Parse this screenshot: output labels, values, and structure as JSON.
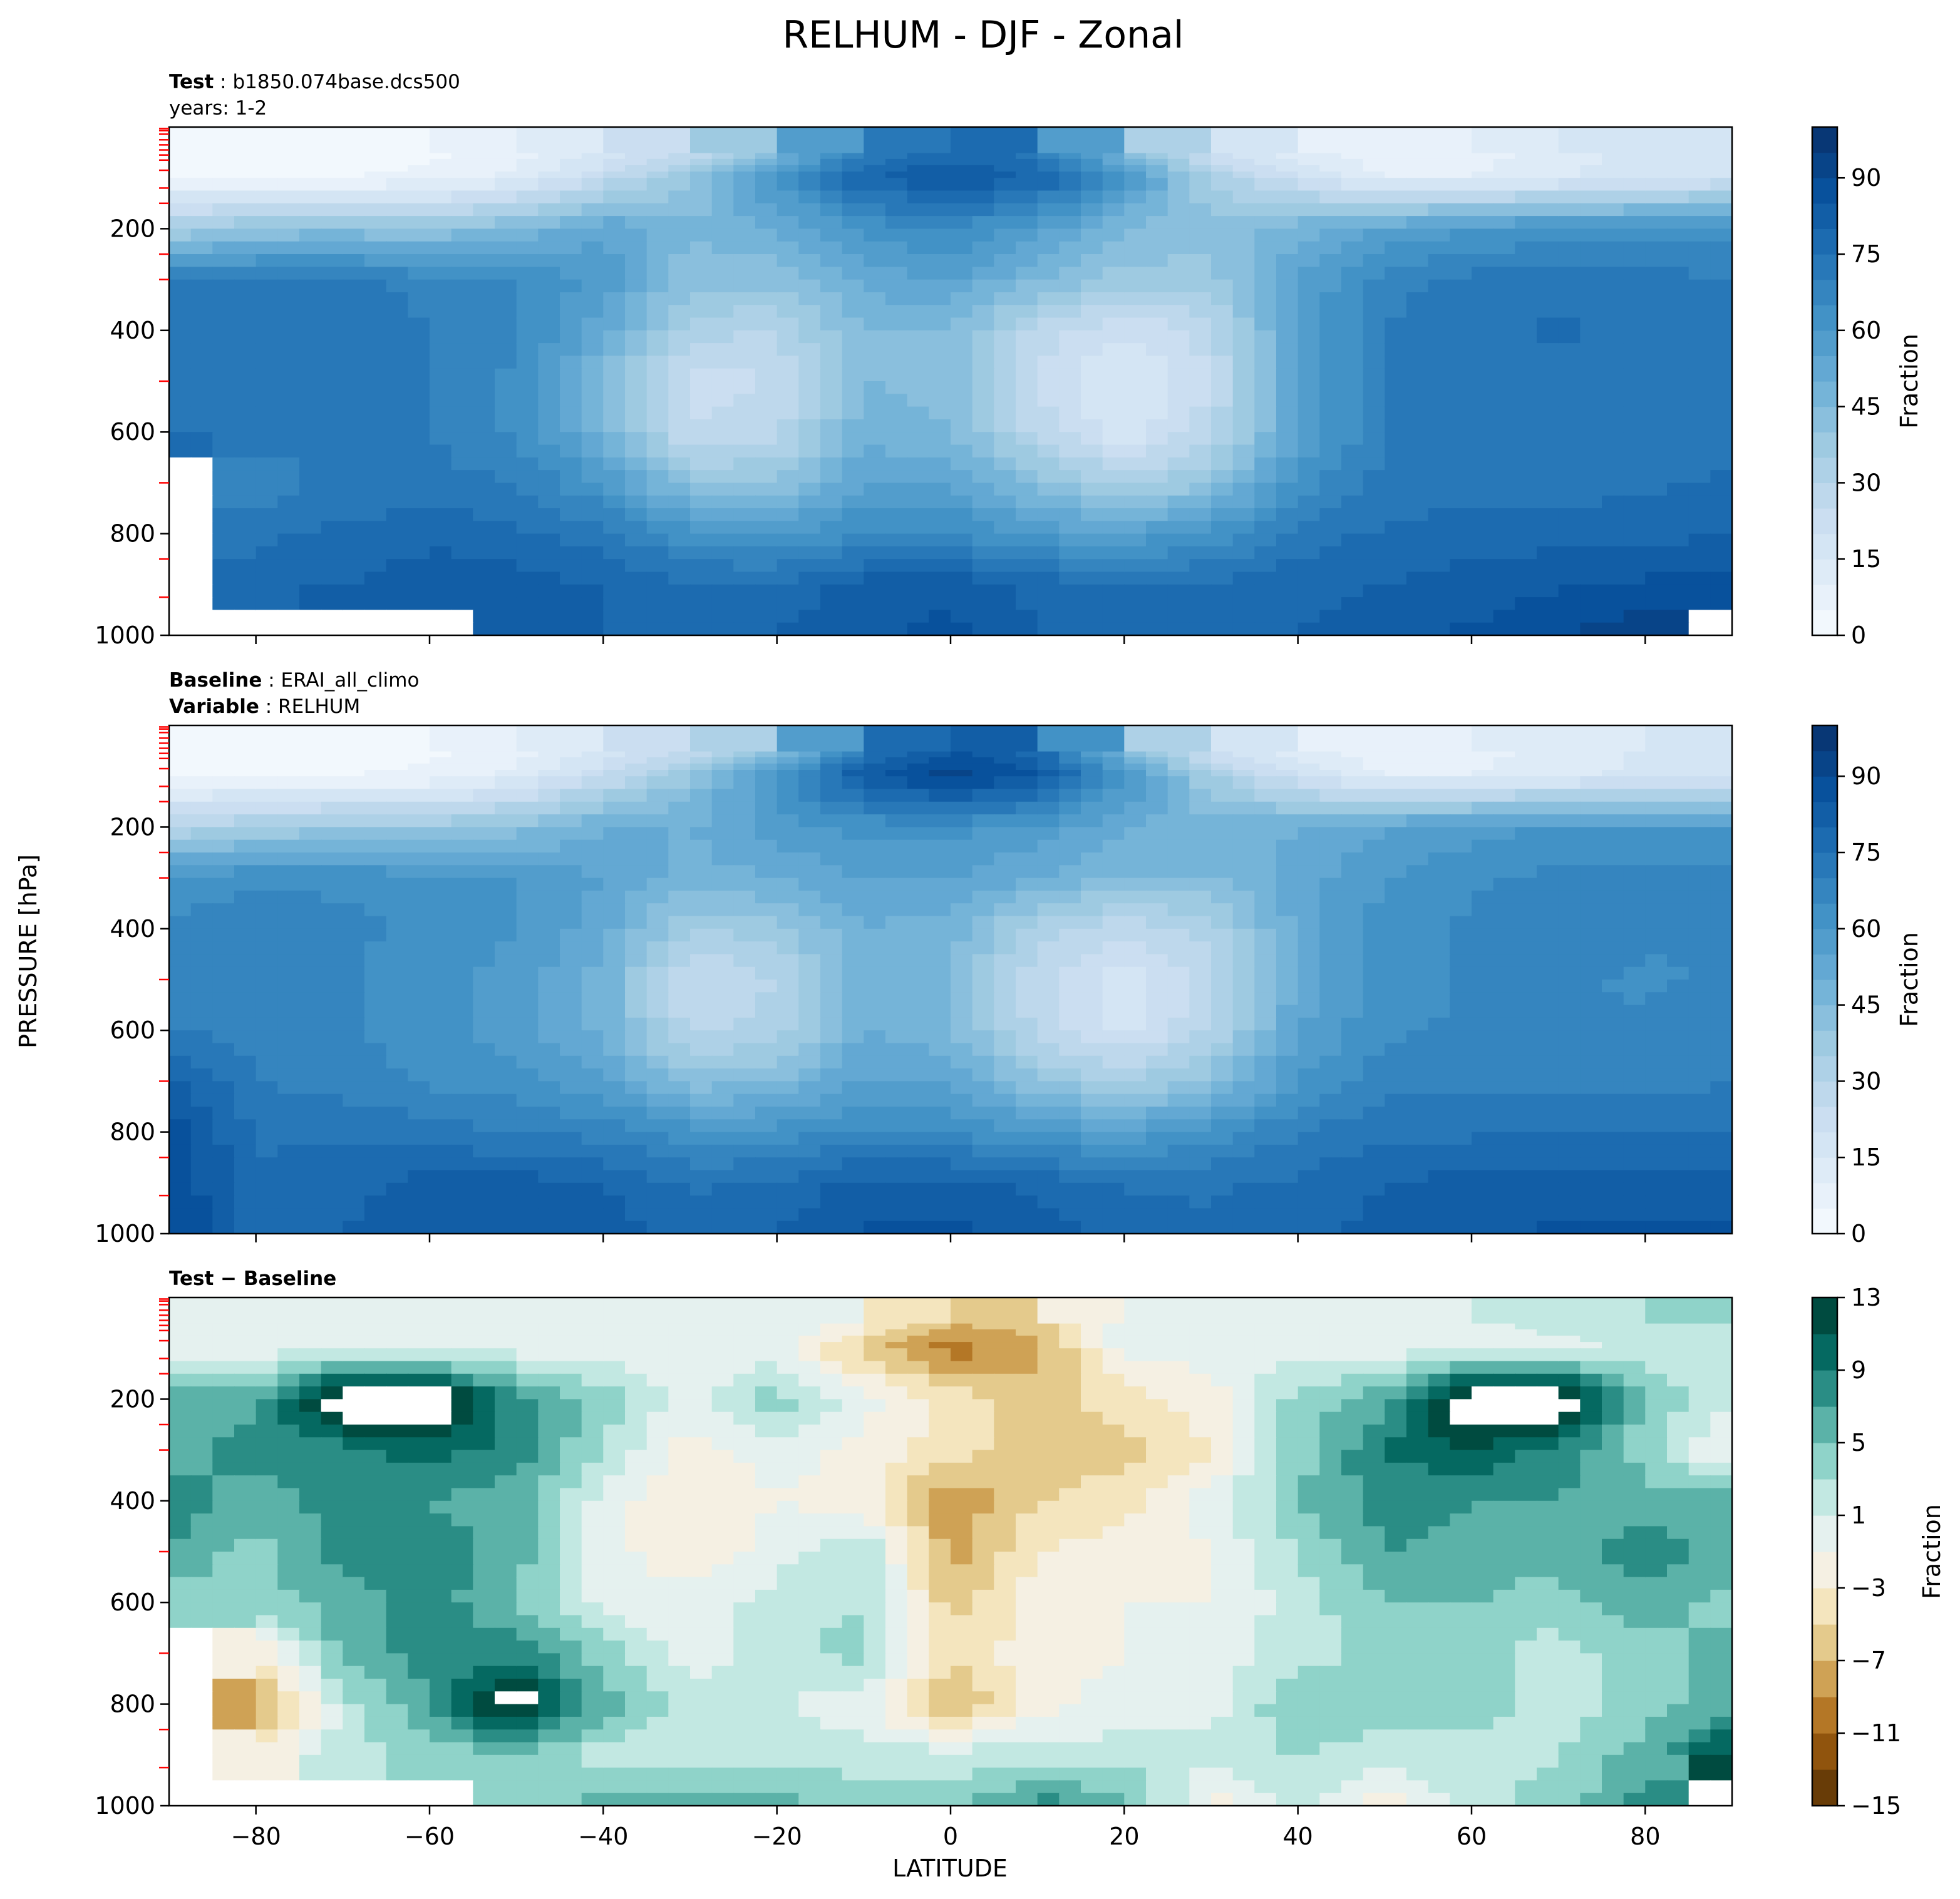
{
  "figure": {
    "title": "RELHUM - DJF - Zonal",
    "ylabel": "PRESSURE [hPa]",
    "xlabel": "LATITUDE"
  },
  "panels": [
    {
      "id": "test",
      "title_lines": [
        {
          "bold": "Test",
          "sep": " : ",
          "text": "b1850.074base.dcs500"
        },
        {
          "bold": "",
          "sep": "",
          "text": "years: 1-2"
        }
      ],
      "colorbar": {
        "label": "Fraction",
        "ticks": [
          "0",
          "15",
          "30",
          "45",
          "60",
          "75",
          "90"
        ]
      }
    },
    {
      "id": "baseline",
      "title_lines": [
        {
          "bold": "Baseline",
          "sep": " : ",
          "text": "ERAI_all_climo"
        },
        {
          "bold": "Variable",
          "sep": " : ",
          "text": "RELHUM"
        }
      ],
      "colorbar": {
        "label": "Fraction",
        "ticks": [
          "0",
          "15",
          "30",
          "45",
          "60",
          "75",
          "90"
        ]
      }
    },
    {
      "id": "diff",
      "title_lines": [
        {
          "bold": "Test − Baseline",
          "sep": "",
          "text": ""
        }
      ],
      "colorbar": {
        "label": "Fraction",
        "ticks": [
          "13",
          "9",
          "5",
          "1",
          "−3",
          "−7",
          "−11",
          "−15"
        ]
      }
    }
  ],
  "chart_data": [
    {
      "type": "heatmap",
      "panel": "test",
      "x": [
        -90,
        -80,
        -70,
        -60,
        -50,
        -40,
        -30,
        -20,
        -10,
        0,
        10,
        20,
        30,
        40,
        50,
        60,
        70,
        80,
        90
      ],
      "y": [
        50,
        100,
        200,
        300,
        400,
        500,
        600,
        700,
        800,
        900,
        1000
      ],
      "z": [
        [
          2,
          3,
          3,
          4,
          8,
          15,
          25,
          45,
          70,
          78,
          72,
          45,
          20,
          12,
          6,
          8,
          12,
          18,
          20
        ],
        [
          4,
          5,
          5,
          6,
          12,
          25,
          40,
          62,
          80,
          85,
          80,
          62,
          35,
          20,
          10,
          10,
          14,
          18,
          20
        ],
        [
          35,
          40,
          42,
          40,
          45,
          55,
          45,
          50,
          62,
          65,
          58,
          45,
          42,
          48,
          55,
          60,
          62,
          62,
          62
        ],
        [
          70,
          72,
          72,
          68,
          66,
          58,
          42,
          42,
          52,
          55,
          45,
          38,
          38,
          55,
          68,
          72,
          72,
          72,
          70
        ],
        [
          75,
          74,
          74,
          70,
          66,
          52,
          32,
          30,
          45,
          45,
          28,
          20,
          28,
          55,
          70,
          74,
          76,
          72,
          72
        ],
        [
          72,
          72,
          74,
          70,
          64,
          45,
          22,
          25,
          45,
          42,
          25,
          14,
          25,
          55,
          70,
          72,
          72,
          72,
          72
        ],
        [
          75,
          72,
          72,
          70,
          64,
          48,
          25,
          28,
          48,
          45,
          28,
          16,
          28,
          55,
          70,
          72,
          70,
          72,
          72
        ],
        [
          null,
          66,
          72,
          72,
          70,
          60,
          40,
          40,
          55,
          55,
          42,
          32,
          40,
          62,
          72,
          72,
          72,
          74,
          76
        ],
        [
          null,
          74,
          76,
          78,
          76,
          72,
          62,
          58,
          65,
          65,
          58,
          56,
          62,
          72,
          76,
          78,
          78,
          78,
          80
        ],
        [
          null,
          76,
          80,
          84,
          82,
          80,
          76,
          76,
          82,
          84,
          78,
          76,
          76,
          78,
          80,
          82,
          84,
          86,
          88
        ],
        [
          null,
          null,
          null,
          null,
          80,
          80,
          78,
          80,
          84,
          86,
          80,
          78,
          78,
          80,
          82,
          86,
          90,
          94,
          null
        ]
      ],
      "zlim": [
        0,
        100
      ],
      "colorbar_label": "Fraction"
    },
    {
      "type": "heatmap",
      "panel": "baseline",
      "x": [
        -90,
        -80,
        -70,
        -60,
        -50,
        -40,
        -30,
        -20,
        -10,
        0,
        10,
        20,
        30,
        40,
        50,
        60,
        70,
        80,
        90
      ],
      "y": [
        50,
        100,
        200,
        300,
        400,
        500,
        600,
        700,
        800,
        900,
        1000
      ],
      "z": [
        [
          2,
          3,
          3,
          4,
          8,
          15,
          25,
          40,
          72,
          85,
          78,
          45,
          20,
          12,
          6,
          8,
          12,
          16,
          18
        ],
        [
          4,
          5,
          5,
          6,
          12,
          25,
          40,
          62,
          85,
          92,
          86,
          62,
          35,
          20,
          10,
          10,
          14,
          16,
          18
        ],
        [
          30,
          35,
          38,
          38,
          42,
          50,
          50,
          58,
          62,
          62,
          58,
          50,
          48,
          50,
          55,
          58,
          60,
          60,
          60
        ],
        [
          62,
          64,
          64,
          62,
          60,
          55,
          48,
          50,
          55,
          55,
          50,
          45,
          45,
          52,
          60,
          64,
          66,
          66,
          66
        ],
        [
          66,
          68,
          66,
          64,
          60,
          52,
          35,
          38,
          50,
          48,
          32,
          26,
          32,
          52,
          62,
          66,
          68,
          66,
          66
        ],
        [
          66,
          68,
          66,
          62,
          58,
          48,
          24,
          30,
          48,
          45,
          26,
          16,
          28,
          52,
          62,
          66,
          66,
          64,
          66
        ],
        [
          70,
          68,
          66,
          62,
          58,
          48,
          28,
          32,
          50,
          46,
          28,
          18,
          30,
          54,
          64,
          66,
          66,
          66,
          68
        ],
        [
          82,
          70,
          68,
          64,
          62,
          56,
          42,
          44,
          56,
          54,
          40,
          34,
          42,
          60,
          68,
          68,
          68,
          68,
          70
        ],
        [
          88,
          74,
          74,
          72,
          70,
          68,
          62,
          62,
          66,
          64,
          60,
          56,
          62,
          70,
          74,
          74,
          74,
          74,
          74
        ],
        [
          90,
          76,
          78,
          82,
          82,
          80,
          74,
          76,
          82,
          82,
          78,
          74,
          74,
          76,
          80,
          82,
          82,
          82,
          82
        ],
        [
          90,
          78,
          80,
          84,
          84,
          82,
          78,
          80,
          86,
          86,
          82,
          78,
          76,
          78,
          82,
          84,
          86,
          86,
          86
        ]
      ],
      "zlim": [
        0,
        100
      ],
      "colorbar_label": "Fraction"
    },
    {
      "type": "heatmap",
      "panel": "diff",
      "x": [
        -90,
        -80,
        -70,
        -60,
        -50,
        -40,
        -30,
        -20,
        -10,
        0,
        10,
        20,
        30,
        40,
        50,
        60,
        70,
        80,
        90
      ],
      "y": [
        50,
        100,
        200,
        300,
        400,
        500,
        600,
        700,
        800,
        900,
        1000
      ],
      "z": [
        [
          0,
          0,
          0,
          0,
          0,
          0,
          0,
          1,
          -2,
          -7,
          -6,
          0,
          0,
          0,
          0,
          0,
          2,
          3,
          3
        ],
        [
          0,
          0,
          0,
          0,
          0,
          0,
          0,
          0,
          -6,
          -10,
          -8,
          0,
          0,
          0,
          0,
          0,
          0,
          2,
          2
        ],
        [
          6,
          6,
          16,
          16,
          8,
          4,
          0,
          4,
          0,
          -4,
          -6,
          -4,
          -2,
          4,
          6,
          16,
          16,
          4,
          2
        ],
        [
          6,
          8,
          8,
          10,
          8,
          3,
          -2,
          0,
          -2,
          -4,
          -6,
          -6,
          -3,
          4,
          9,
          11,
          8,
          4,
          -2
        ],
        [
          8,
          6,
          8,
          7,
          6,
          0,
          -3,
          -1,
          -2,
          -9,
          -5,
          -4,
          0,
          5,
          8,
          7,
          7,
          6,
          6
        ],
        [
          7,
          4,
          8,
          8,
          6,
          0,
          -3,
          0,
          3,
          -8,
          -3,
          -2,
          -1,
          3,
          7,
          6,
          6,
          8,
          6
        ],
        [
          4,
          4,
          6,
          8,
          5,
          0,
          0,
          2,
          3,
          -6,
          -2,
          -1,
          -1,
          2,
          5,
          5,
          4,
          6,
          4
        ],
        [
          null,
          -3,
          6,
          8,
          8,
          4,
          0,
          2,
          4,
          -4,
          -2,
          -1,
          0,
          2,
          4,
          4,
          2,
          4,
          6
        ],
        [
          null,
          -9,
          2,
          7,
          15,
          6,
          2,
          1,
          0,
          -8,
          -2,
          0,
          0,
          5,
          4,
          4,
          2,
          4,
          6
        ],
        [
          null,
          -2,
          2,
          4,
          4,
          2,
          2,
          2,
          2,
          2,
          2,
          2,
          2,
          3,
          2,
          2,
          3,
          6,
          12
        ],
        [
          null,
          null,
          null,
          null,
          4,
          6,
          6,
          6,
          4,
          4,
          8,
          6,
          -2,
          2,
          -2,
          2,
          4,
          8,
          null
        ]
      ],
      "zlim": [
        -15,
        13
      ],
      "levels": [
        -15,
        -13,
        -11,
        -9,
        -7,
        -5,
        -3,
        -1,
        1,
        3,
        5,
        7,
        9,
        11,
        13
      ],
      "colorbar_label": "Fraction"
    }
  ],
  "axes": {
    "x_ticks": [
      "−80",
      "−60",
      "−40",
      "−20",
      "0",
      "20",
      "40",
      "60",
      "80"
    ],
    "x_tick_values": [
      -80,
      -60,
      -40,
      -20,
      0,
      20,
      40,
      60,
      80
    ],
    "xlim": [
      -90,
      90
    ],
    "y_ticks": [
      "200",
      "400",
      "600",
      "800",
      "1000"
    ],
    "y_tick_values": [
      200,
      400,
      600,
      800,
      1000
    ],
    "ylim": [
      1000,
      0
    ],
    "model_levels": [
      3,
      7,
      14,
      25,
      35,
      45,
      55,
      65,
      85,
      120,
      150,
      250,
      300,
      500,
      700,
      850,
      925
    ]
  },
  "colors": {
    "blues": [
      "#f7fbff",
      "#deebf7",
      "#c6dbef",
      "#9ecae1",
      "#6baed6",
      "#4292c6",
      "#2171b5",
      "#08519c",
      "#08306b"
    ],
    "brbg": [
      "#543005",
      "#8c510a",
      "#bf812d",
      "#dfc27d",
      "#f6e8c3",
      "#f5f5f5",
      "#c7eae5",
      "#80cdc1",
      "#35978f",
      "#01665e",
      "#003c30"
    ],
    "level_tick": "#ff0000"
  }
}
